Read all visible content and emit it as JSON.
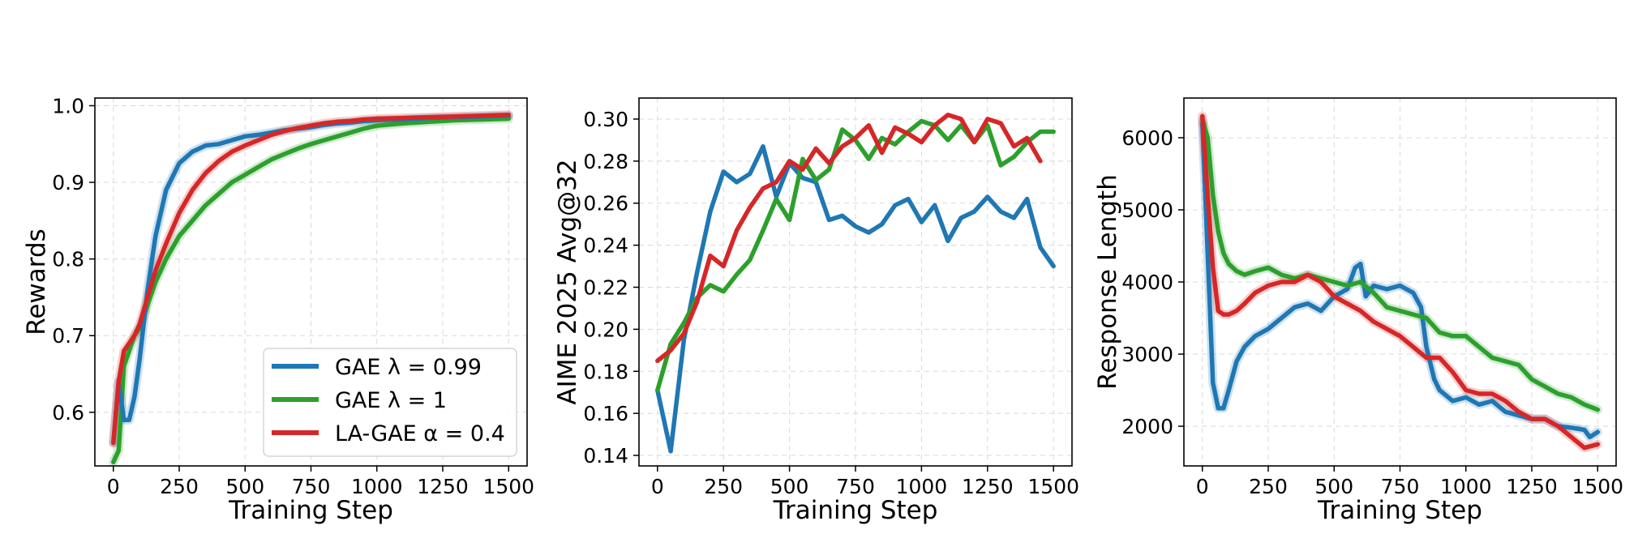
{
  "colors": {
    "blue": "#1f77b4",
    "green": "#2ca02c",
    "red": "#d62728"
  },
  "chart_data": [
    {
      "type": "line",
      "xlabel": "Training Step",
      "ylabel": "Rewards",
      "xlim": [
        -70,
        1570
      ],
      "ylim": [
        0.53,
        1.01
      ],
      "xticks": [
        0,
        250,
        500,
        750,
        1000,
        1250,
        1500
      ],
      "yticks": [
        0.6,
        0.7,
        0.8,
        0.9,
        1.0
      ],
      "ytick_labels": [
        "0.6",
        "0.7",
        "0.8",
        "0.9",
        "1.0"
      ],
      "grid": true,
      "legend_position": "lower-right",
      "series": [
        {
          "name": "GAE λ = 0.99",
          "color": "#1f77b4",
          "x": [
            0,
            20,
            40,
            60,
            80,
            100,
            130,
            160,
            200,
            250,
            300,
            350,
            400,
            450,
            500,
            550,
            600,
            650,
            700,
            750,
            800,
            850,
            900,
            950,
            1000,
            1100,
            1200,
            1300,
            1400,
            1500
          ],
          "y": [
            0.56,
            0.64,
            0.59,
            0.59,
            0.62,
            0.67,
            0.76,
            0.83,
            0.89,
            0.925,
            0.94,
            0.948,
            0.95,
            0.955,
            0.96,
            0.962,
            0.965,
            0.968,
            0.97,
            0.972,
            0.975,
            0.977,
            0.978,
            0.98,
            0.981,
            0.982,
            0.984,
            0.985,
            0.986,
            0.987
          ]
        },
        {
          "name": "GAE λ = 1",
          "color": "#2ca02c",
          "x": [
            0,
            20,
            40,
            60,
            80,
            100,
            130,
            160,
            200,
            250,
            300,
            350,
            400,
            450,
            500,
            550,
            600,
            650,
            700,
            750,
            800,
            850,
            900,
            950,
            1000,
            1100,
            1200,
            1300,
            1400,
            1500
          ],
          "y": [
            0.535,
            0.55,
            0.66,
            0.68,
            0.7,
            0.71,
            0.74,
            0.77,
            0.8,
            0.83,
            0.85,
            0.87,
            0.885,
            0.9,
            0.91,
            0.92,
            0.93,
            0.937,
            0.944,
            0.95,
            0.955,
            0.96,
            0.965,
            0.97,
            0.974,
            0.977,
            0.979,
            0.981,
            0.982,
            0.983
          ]
        },
        {
          "name": "LA-GAE α = 0.4",
          "color": "#d62728",
          "x": [
            0,
            20,
            40,
            60,
            80,
            100,
            130,
            160,
            200,
            250,
            300,
            350,
            400,
            450,
            500,
            550,
            600,
            650,
            700,
            750,
            800,
            850,
            900,
            950,
            1000,
            1100,
            1200,
            1300,
            1400,
            1500
          ],
          "y": [
            0.56,
            0.64,
            0.68,
            0.69,
            0.7,
            0.715,
            0.75,
            0.785,
            0.82,
            0.86,
            0.89,
            0.912,
            0.928,
            0.94,
            0.948,
            0.955,
            0.962,
            0.967,
            0.971,
            0.974,
            0.977,
            0.979,
            0.98,
            0.982,
            0.983,
            0.984,
            0.985,
            0.986,
            0.987,
            0.988
          ]
        }
      ]
    },
    {
      "type": "line",
      "xlabel": "Training Step",
      "ylabel": "AIME 2025 Avg@32",
      "xlim": [
        -70,
        1570
      ],
      "ylim": [
        0.135,
        0.31
      ],
      "xticks": [
        0,
        250,
        500,
        750,
        1000,
        1250,
        1500
      ],
      "yticks": [
        0.14,
        0.16,
        0.18,
        0.2,
        0.22,
        0.24,
        0.26,
        0.28,
        0.3
      ],
      "ytick_labels": [
        "0.14",
        "0.16",
        "0.18",
        "0.20",
        "0.22",
        "0.24",
        "0.26",
        "0.28",
        "0.30"
      ],
      "grid": true,
      "series": [
        {
          "name": "GAE λ = 0.99",
          "color": "#1f77b4",
          "x": [
            0,
            50,
            100,
            150,
            200,
            250,
            300,
            350,
            400,
            450,
            500,
            550,
            600,
            650,
            700,
            750,
            800,
            850,
            900,
            950,
            1000,
            1050,
            1100,
            1150,
            1200,
            1250,
            1300,
            1350,
            1400,
            1450,
            1500
          ],
          "y": [
            0.171,
            0.142,
            0.195,
            0.227,
            0.256,
            0.275,
            0.27,
            0.274,
            0.287,
            0.263,
            0.279,
            0.272,
            0.27,
            0.252,
            0.254,
            0.249,
            0.246,
            0.25,
            0.259,
            0.262,
            0.251,
            0.259,
            0.242,
            0.253,
            0.256,
            0.263,
            0.256,
            0.253,
            0.262,
            0.239,
            0.23
          ]
        },
        {
          "name": "GAE λ = 1",
          "color": "#2ca02c",
          "x": [
            0,
            50,
            100,
            150,
            200,
            250,
            300,
            350,
            400,
            450,
            500,
            550,
            600,
            650,
            700,
            750,
            800,
            850,
            900,
            950,
            1000,
            1050,
            1100,
            1150,
            1200,
            1250,
            1300,
            1350,
            1400,
            1450,
            1500
          ],
          "y": [
            0.171,
            0.193,
            0.203,
            0.215,
            0.221,
            0.218,
            0.226,
            0.233,
            0.247,
            0.262,
            0.252,
            0.281,
            0.271,
            0.276,
            0.295,
            0.29,
            0.281,
            0.291,
            0.288,
            0.294,
            0.299,
            0.297,
            0.29,
            0.297,
            0.289,
            0.297,
            0.278,
            0.282,
            0.289,
            0.294,
            0.294
          ]
        },
        {
          "name": "LA-GAE α = 0.4",
          "color": "#d62728",
          "x": [
            0,
            50,
            100,
            150,
            200,
            250,
            300,
            350,
            400,
            450,
            500,
            550,
            600,
            650,
            700,
            750,
            800,
            850,
            900,
            950,
            1000,
            1050,
            1100,
            1150,
            1200,
            1250,
            1300,
            1350,
            1400,
            1450
          ],
          "y": [
            0.185,
            0.19,
            0.198,
            0.213,
            0.235,
            0.23,
            0.247,
            0.258,
            0.267,
            0.27,
            0.28,
            0.276,
            0.286,
            0.279,
            0.287,
            0.291,
            0.297,
            0.284,
            0.296,
            0.293,
            0.289,
            0.297,
            0.302,
            0.3,
            0.289,
            0.3,
            0.298,
            0.287,
            0.291,
            0.28
          ]
        }
      ]
    },
    {
      "type": "line",
      "xlabel": "Training Step",
      "ylabel": "Response Length",
      "xlim": [
        -70,
        1570
      ],
      "ylim": [
        1450,
        6550
      ],
      "xticks": [
        0,
        250,
        500,
        750,
        1000,
        1250,
        1500
      ],
      "yticks": [
        2000,
        3000,
        4000,
        5000,
        6000
      ],
      "ytick_labels": [
        "2000",
        "3000",
        "4000",
        "5000",
        "6000"
      ],
      "grid": true,
      "series": [
        {
          "name": "GAE λ = 0.99",
          "color": "#1f77b4",
          "x": [
            0,
            20,
            40,
            60,
            80,
            100,
            130,
            160,
            200,
            250,
            300,
            350,
            400,
            450,
            500,
            550,
            580,
            600,
            620,
            650,
            700,
            750,
            800,
            830,
            850,
            880,
            900,
            950,
            1000,
            1050,
            1100,
            1150,
            1200,
            1250,
            1300,
            1350,
            1400,
            1450,
            1470,
            1500
          ],
          "y": [
            6200,
            4400,
            2600,
            2250,
            2250,
            2500,
            2900,
            3100,
            3250,
            3350,
            3500,
            3650,
            3700,
            3600,
            3800,
            3900,
            4200,
            4250,
            3800,
            3950,
            3900,
            3950,
            3850,
            3650,
            3100,
            2650,
            2500,
            2350,
            2400,
            2300,
            2350,
            2200,
            2150,
            2100,
            2100,
            2000,
            1980,
            1950,
            1850,
            1920
          ]
        },
        {
          "name": "GAE λ = 1",
          "color": "#2ca02c",
          "x": [
            0,
            20,
            40,
            60,
            80,
            100,
            130,
            160,
            200,
            250,
            300,
            350,
            400,
            450,
            500,
            550,
            600,
            650,
            700,
            750,
            800,
            850,
            900,
            950,
            1000,
            1050,
            1100,
            1150,
            1200,
            1250,
            1300,
            1350,
            1400,
            1450,
            1500
          ],
          "y": [
            6250,
            6000,
            5200,
            4700,
            4400,
            4250,
            4150,
            4100,
            4150,
            4200,
            4100,
            4050,
            4100,
            4050,
            4000,
            3950,
            4000,
            3850,
            3650,
            3600,
            3550,
            3500,
            3300,
            3250,
            3250,
            3100,
            2950,
            2900,
            2850,
            2650,
            2550,
            2450,
            2400,
            2300,
            2230
          ]
        },
        {
          "name": "LA-GAE α = 0.4",
          "color": "#d62728",
          "x": [
            0,
            20,
            40,
            60,
            80,
            100,
            130,
            160,
            200,
            250,
            300,
            350,
            400,
            450,
            500,
            550,
            600,
            650,
            700,
            750,
            800,
            850,
            900,
            950,
            1000,
            1050,
            1100,
            1150,
            1200,
            1250,
            1300,
            1350,
            1400,
            1450,
            1500
          ],
          "y": [
            6300,
            5200,
            4200,
            3600,
            3550,
            3550,
            3600,
            3700,
            3850,
            3950,
            4000,
            4000,
            4100,
            4000,
            3800,
            3700,
            3600,
            3450,
            3350,
            3250,
            3100,
            2950,
            2950,
            2750,
            2500,
            2450,
            2450,
            2350,
            2200,
            2100,
            2100,
            2000,
            1850,
            1700,
            1750
          ]
        }
      ]
    }
  ],
  "legend": [
    {
      "label": "GAE λ = 0.99",
      "color": "#1f77b4"
    },
    {
      "label": "GAE λ = 1",
      "color": "#2ca02c"
    },
    {
      "label": "LA-GAE α = 0.4",
      "color": "#d62728"
    }
  ]
}
